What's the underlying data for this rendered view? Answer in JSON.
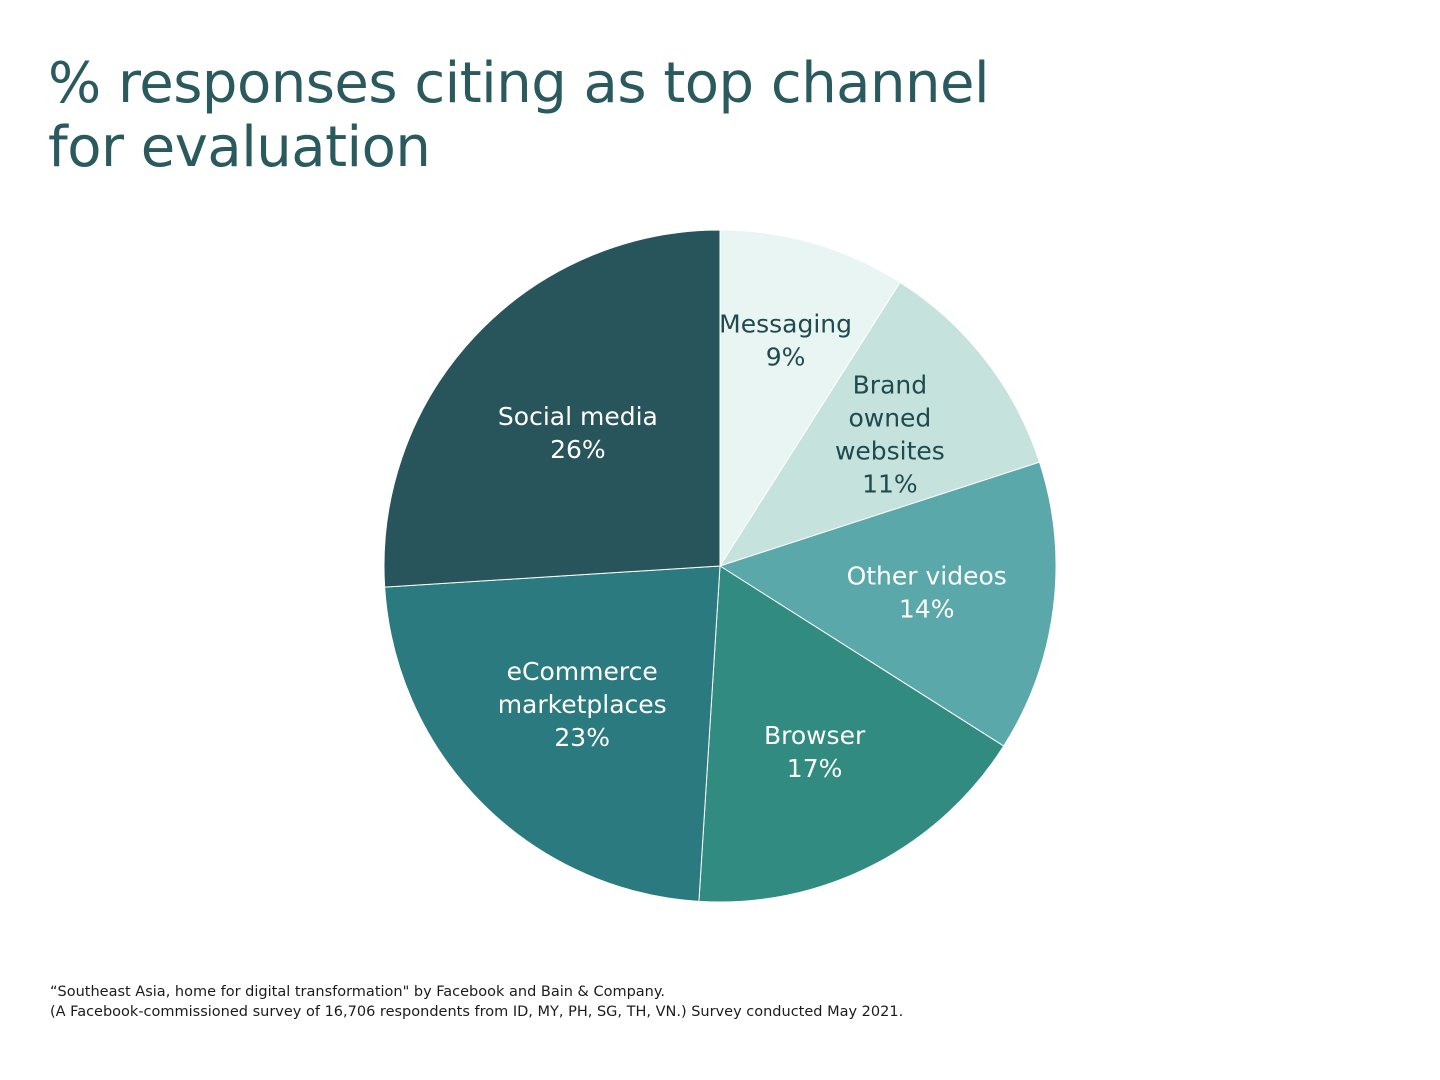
{
  "title": {
    "line1": "% responses citing as top channel",
    "line2": "for evaluation"
  },
  "chart_data": {
    "type": "pie",
    "title": "% responses citing as top channel for evaluation",
    "unit": "%",
    "slices": [
      {
        "label_lines": [
          "Messaging"
        ],
        "label": "Messaging",
        "value": 9,
        "value_text": "9%",
        "color": "#e8f5f2",
        "text_color": "#1f4a4f"
      },
      {
        "label_lines": [
          "Brand",
          "owned",
          "websites"
        ],
        "label": "Brand owned websites",
        "value": 11,
        "value_text": "11%",
        "color": "#c5e3dc",
        "text_color": "#1f4a4f"
      },
      {
        "label_lines": [
          "Other videos"
        ],
        "label": "Other videos",
        "value": 14,
        "value_text": "14%",
        "color": "#5aa8aa",
        "text_color": "#ffffff"
      },
      {
        "label_lines": [
          "Browser"
        ],
        "label": "Browser",
        "value": 17,
        "value_text": "17%",
        "color": "#318b80",
        "text_color": "#ffffff"
      },
      {
        "label_lines": [
          "eCommerce",
          "marketplaces"
        ],
        "label": "eCommerce marketplaces",
        "value": 23,
        "value_text": "23%",
        "color": "#2b7a80",
        "text_color": "#ffffff"
      },
      {
        "label_lines": [
          "Social media"
        ],
        "label": "Social media",
        "value": 26,
        "value_text": "26%",
        "color": "#28545b",
        "text_color": "#ffffff"
      }
    ],
    "start": "12 o'clock",
    "direction": "clockwise",
    "legend": "none"
  },
  "footnote": {
    "line1": "“Southeast Asia, home for digital transformation\" by Facebook and Bain & Company.",
    "line2": "(A Facebook-commissioned survey of 16,706 respondents from ID, MY, PH, SG, TH, VN.) Survey conducted May 2021."
  }
}
